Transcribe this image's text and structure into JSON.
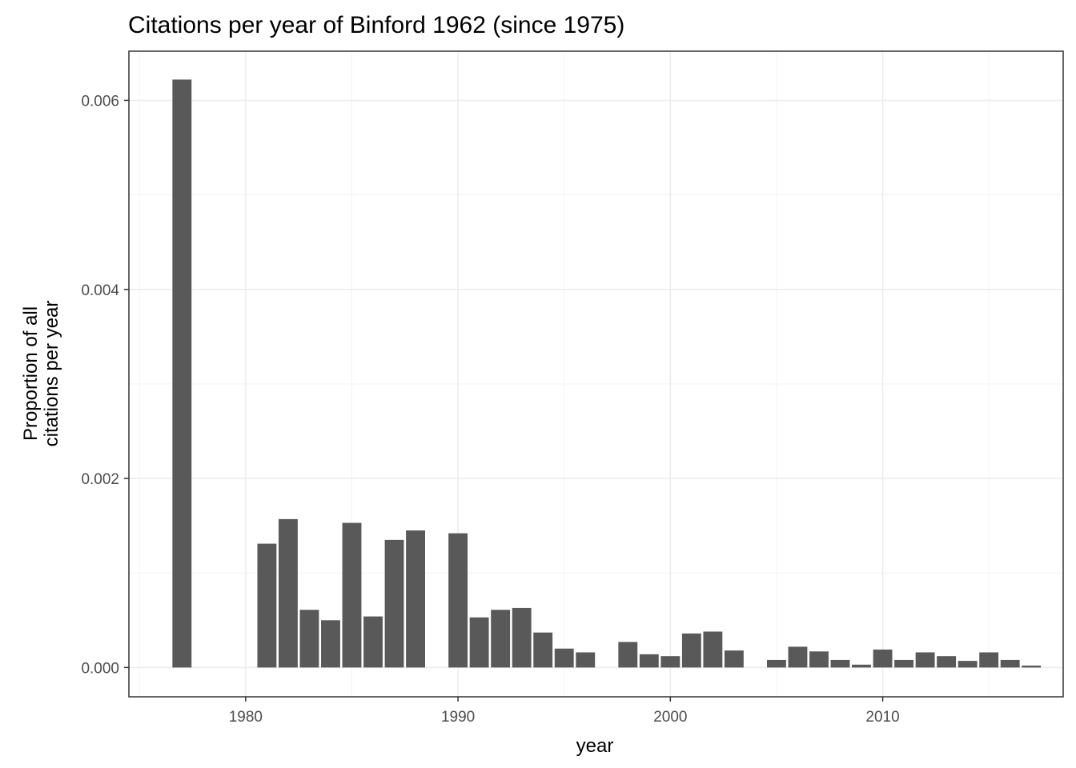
{
  "chart_data": {
    "type": "bar",
    "title": "Citations per year of Binford 1962 (since 1975)",
    "xlabel": "year",
    "ylabel_lines": [
      "Proportion of all",
      "citations per year"
    ],
    "x_ticks": [
      1980,
      1990,
      2000,
      2010
    ],
    "y_ticks": [
      "0.000",
      "0.002",
      "0.004",
      "0.006"
    ],
    "xlim": [
      1974.5,
      2018.5
    ],
    "ylim": [
      -0.00031,
      0.00652
    ],
    "grid": true,
    "bar_color": "#595959",
    "categories": [
      1977,
      1981,
      1982,
      1983,
      1984,
      1985,
      1986,
      1987,
      1988,
      1990,
      1991,
      1992,
      1993,
      1994,
      1995,
      1996,
      1998,
      1999,
      2000,
      2001,
      2002,
      2003,
      2005,
      2006,
      2007,
      2008,
      2009,
      2010,
      2011,
      2012,
      2013,
      2014,
      2015,
      2016,
      2017
    ],
    "values": [
      0.00622,
      0.00131,
      0.00157,
      0.00061,
      0.0005,
      0.00153,
      0.00054,
      0.00135,
      0.00145,
      0.00142,
      0.00053,
      0.00061,
      0.00063,
      0.00037,
      0.0002,
      0.00016,
      0.00027,
      0.00014,
      0.00012,
      0.00036,
      0.00038,
      0.00018,
      8e-05,
      0.00022,
      0.00017,
      8e-05,
      3e-05,
      0.00019,
      8e-05,
      0.00016,
      0.00012,
      7e-05,
      0.00016,
      8e-05,
      2e-05
    ]
  }
}
